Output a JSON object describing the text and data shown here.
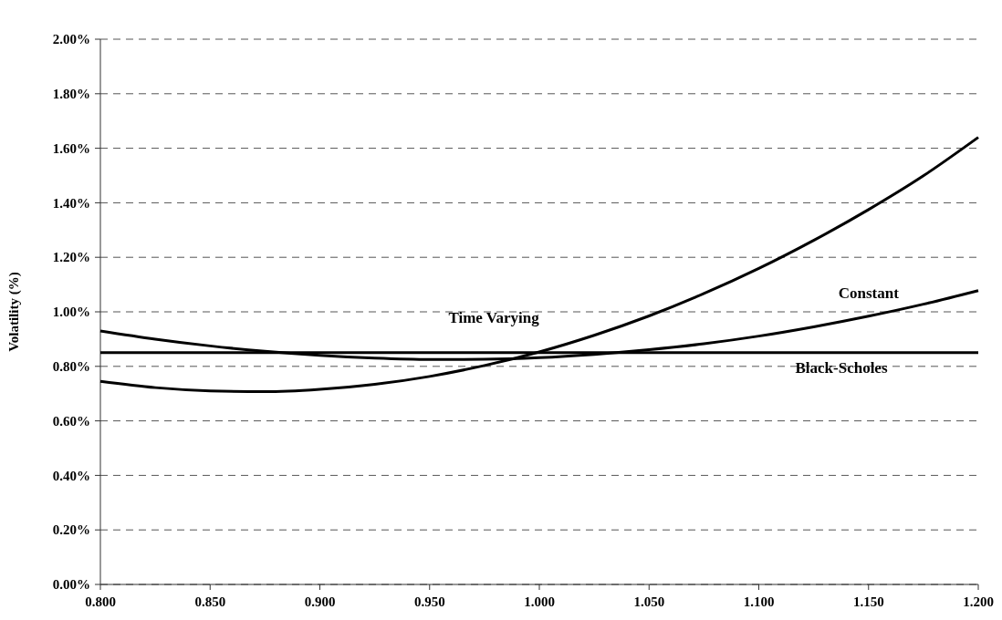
{
  "chart_data": {
    "type": "line",
    "ylabel": "Volatility (%)",
    "xlim": [
      0.8,
      1.2
    ],
    "xticks": [
      {
        "value": 0.8,
        "label": "0.800"
      },
      {
        "value": 0.85,
        "label": "0.850"
      },
      {
        "value": 0.9,
        "label": "0.900"
      },
      {
        "value": 0.95,
        "label": "0.950"
      },
      {
        "value": 1.0,
        "label": "1.000"
      },
      {
        "value": 1.05,
        "label": "1.050"
      },
      {
        "value": 1.1,
        "label": "1.100"
      },
      {
        "value": 1.15,
        "label": "1.150"
      },
      {
        "value": 1.2,
        "label": "1.200"
      }
    ],
    "ylim": [
      0,
      2
    ],
    "yticks": [
      {
        "value": 0,
        "label": "0.00%"
      },
      {
        "value": 0.2,
        "label": "0.20%"
      },
      {
        "value": 0.4,
        "label": "0.40%"
      },
      {
        "value": 0.6,
        "label": "0.60%"
      },
      {
        "value": 0.8,
        "label": "0.80%"
      },
      {
        "value": 1.0,
        "label": "1.00%"
      },
      {
        "value": 1.2,
        "label": "1.20%"
      },
      {
        "value": 1.4,
        "label": "1.40%"
      },
      {
        "value": 1.6,
        "label": "1.60%"
      },
      {
        "value": 1.8,
        "label": "1.80%"
      },
      {
        "value": 2.0,
        "label": "2.00%"
      }
    ],
    "grid": "y",
    "marker": "none",
    "line_style": "solid",
    "x": [
      0.8,
      0.825,
      0.85,
      0.875,
      0.9,
      0.925,
      0.95,
      0.975,
      1.0,
      1.025,
      1.05,
      1.075,
      1.1,
      1.125,
      1.15,
      1.175,
      1.2
    ],
    "series": [
      {
        "name": "Time Varying",
        "color": "#000000",
        "values": [
          0.745,
          0.722,
          0.71,
          0.707,
          0.716,
          0.734,
          0.763,
          0.803,
          0.853,
          0.914,
          0.985,
          1.067,
          1.159,
          1.262,
          1.375,
          1.499,
          1.64
        ]
      },
      {
        "name": "Constant",
        "color": "#000000",
        "values": [
          0.93,
          0.9,
          0.875,
          0.855,
          0.84,
          0.83,
          0.825,
          0.826,
          0.832,
          0.844,
          0.861,
          0.883,
          0.911,
          0.945,
          0.984,
          1.028,
          1.078
        ]
      },
      {
        "name": "Black-Scholes",
        "color": "#000000",
        "x": [
          0.8,
          1.2
        ],
        "values": [
          0.85,
          0.85
        ]
      }
    ]
  }
}
